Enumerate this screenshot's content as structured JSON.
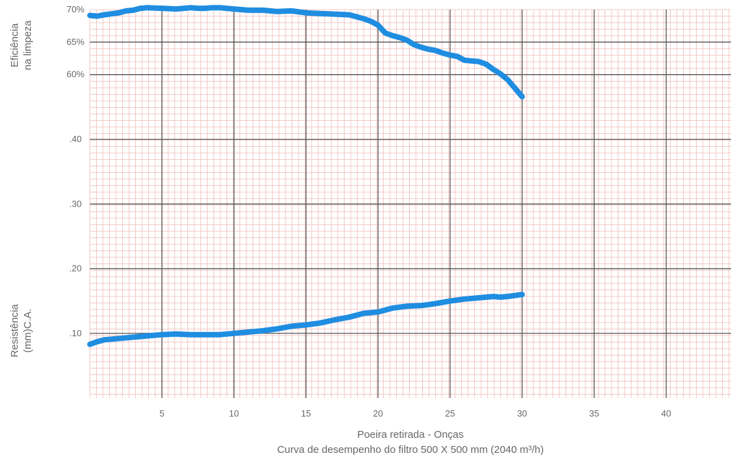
{
  "chart_data": {
    "type": "line",
    "title": "",
    "xlabel": "Poeira retirada - Onças",
    "caption": "Curva de desempenho do filtro 500 X 500 mm (2040 m³/h)",
    "xlim": [
      0,
      44.5
    ],
    "x_ticks": [
      5,
      10,
      15,
      20,
      25,
      30,
      35,
      40
    ],
    "x_tick_labels": [
      "5",
      "10",
      "15",
      "20",
      "25",
      "30",
      "35",
      "40"
    ],
    "grid": true,
    "upper_panel": {
      "ylabel_lines": [
        "Eficiência",
        "na limpeza"
      ],
      "ylim": [
        55,
        70
      ],
      "y_ticks": [
        60,
        65,
        70
      ],
      "y_tick_labels": [
        "60%",
        "65%",
        "70%"
      ],
      "series": [
        {
          "color": "#1f8de0",
          "x": [
            0,
            0.5,
            1,
            2,
            2.5,
            3,
            3.5,
            4,
            5,
            6,
            7,
            7.5,
            8,
            8.5,
            9,
            10,
            11,
            12,
            13,
            14,
            15,
            16,
            17,
            18,
            18.5,
            19,
            19.5,
            20,
            20.5,
            21,
            21.5,
            22,
            22.5,
            23,
            23.5,
            24,
            24.5,
            25,
            25.5,
            26,
            26.5,
            27,
            27.5,
            28,
            28.5,
            29,
            29.5,
            30
          ],
          "values": [
            69.1,
            69.0,
            69.2,
            69.5,
            69.8,
            69.9,
            70.2,
            70.3,
            70.2,
            70.1,
            70.3,
            70.2,
            70.2,
            70.3,
            70.3,
            70.1,
            69.9,
            69.9,
            69.7,
            69.8,
            69.5,
            69.4,
            69.3,
            69.2,
            68.9,
            68.6,
            68.2,
            67.6,
            66.4,
            66.0,
            65.7,
            65.3,
            64.6,
            64.2,
            63.9,
            63.7,
            63.3,
            63.0,
            62.8,
            62.2,
            62.1,
            62.0,
            61.6,
            60.8,
            60.1,
            59.2,
            57.9,
            56.6
          ]
        }
      ]
    },
    "lower_panel": {
      "ylabel_lines": [
        "Resistência",
        "(mm)C.A."
      ],
      "ylim": [
        0,
        0.45
      ],
      "y_ticks": [
        0.1,
        0.2,
        0.3,
        0.4
      ],
      "y_tick_labels": [
        ".10",
        ".20",
        ".30",
        ".40"
      ],
      "series": [
        {
          "color": "#1f8de0",
          "x": [
            0,
            0.5,
            1,
            1.5,
            2,
            3,
            4,
            5,
            6,
            7,
            8,
            9,
            10,
            11,
            12,
            13,
            14,
            15,
            16,
            17,
            18,
            19,
            20,
            21,
            22,
            23,
            24,
            25,
            26,
            27,
            28,
            28.5,
            29,
            30
          ],
          "values": [
            0.083,
            0.087,
            0.09,
            0.091,
            0.092,
            0.094,
            0.096,
            0.098,
            0.099,
            0.098,
            0.098,
            0.098,
            0.1,
            0.102,
            0.104,
            0.107,
            0.111,
            0.113,
            0.116,
            0.121,
            0.125,
            0.131,
            0.133,
            0.139,
            0.142,
            0.143,
            0.146,
            0.15,
            0.153,
            0.155,
            0.157,
            0.156,
            0.157,
            0.16
          ]
        }
      ]
    }
  }
}
